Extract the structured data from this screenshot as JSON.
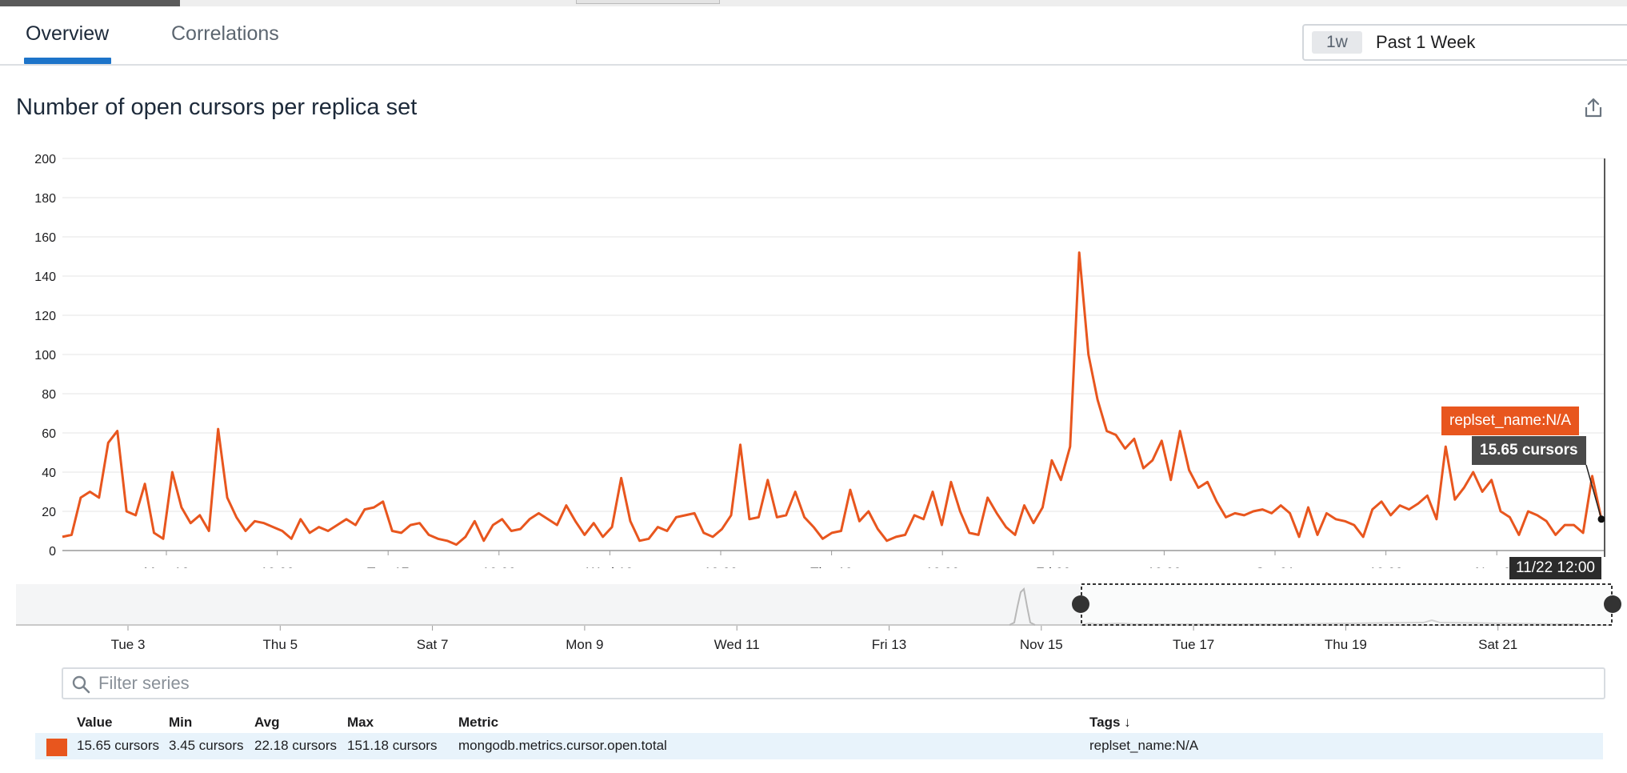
{
  "tabs": [
    {
      "label": "Overview",
      "active": true
    },
    {
      "label": "Correlations",
      "active": false
    }
  ],
  "time_picker": {
    "badge": "1w",
    "label": "Past 1 Week"
  },
  "chart": {
    "title": "Number of open cursors per replica set",
    "export_icon": "share-export-icon"
  },
  "chart_data": {
    "type": "line",
    "ylim": [
      0,
      200
    ],
    "yticks": [
      0,
      20,
      40,
      60,
      80,
      100,
      120,
      140,
      160,
      180,
      200
    ],
    "xticks": [
      "Mon 16",
      "12:00",
      "Tue 17",
      "12:00",
      "Wed 18",
      "12:00",
      "Thu 19",
      "12:00",
      "Fri 20",
      "12:00",
      "Sat 21",
      "12:00",
      "Nov 22"
    ],
    "series": [
      {
        "name": "replset_name:N/A",
        "color": "#e8561e",
        "x_start": "Nov 15, 10:00",
        "x_step_hours": 1,
        "values": [
          7,
          8,
          27,
          30,
          27,
          55,
          61,
          20,
          18,
          34,
          9,
          6,
          40,
          22,
          14,
          18,
          10,
          62,
          27,
          17,
          10,
          15,
          14,
          12,
          10,
          6,
          16,
          9,
          12,
          10,
          13,
          16,
          13,
          21,
          22,
          25,
          10,
          9,
          13,
          14,
          8,
          6,
          5,
          3,
          7,
          15,
          5,
          13,
          16,
          10,
          11,
          16,
          19,
          16,
          13,
          23,
          15,
          8,
          14,
          7,
          12,
          37,
          15,
          5,
          6,
          12,
          10,
          17,
          18,
          19,
          9,
          7,
          11,
          18,
          54,
          16,
          17,
          36,
          17,
          18,
          30,
          17,
          12,
          6,
          9,
          10,
          31,
          15,
          20,
          11,
          5,
          7,
          8,
          18,
          16,
          30,
          13,
          35,
          20,
          9,
          8,
          27,
          19,
          12,
          8,
          23,
          14,
          22,
          46,
          36,
          53,
          152,
          100,
          77,
          61,
          59,
          52,
          57,
          42,
          46,
          56,
          36,
          61,
          41,
          32,
          35,
          25,
          17,
          19,
          18,
          20,
          21,
          19,
          23,
          19,
          7,
          22,
          8,
          19,
          16,
          15,
          13,
          7,
          21,
          25,
          18,
          23,
          21,
          24,
          28,
          16,
          53,
          26,
          32,
          40,
          30,
          36,
          20,
          17,
          8,
          20,
          18,
          15,
          8,
          13,
          13,
          9,
          38,
          16
        ]
      }
    ]
  },
  "tooltip": {
    "tag": "replset_name:N/A",
    "value": "15.65 cursors",
    "time": "11/22 12:00"
  },
  "overview_chart": {
    "xticks": [
      "Tue 3",
      "Thu 5",
      "Sat 7",
      "Mon 9",
      "Wed 11",
      "Fri 13",
      "Nov 15",
      "Tue 17",
      "Thu 19",
      "Sat 21"
    ]
  },
  "filter": {
    "placeholder": "Filter series",
    "value": ""
  },
  "legend": {
    "headers": {
      "value": "Value",
      "min": "Min",
      "avg": "Avg",
      "max": "Max",
      "metric": "Metric",
      "tags": "Tags ↓"
    },
    "rows": [
      {
        "color": "#e8561e",
        "value": "15.65 cursors",
        "min": "3.45 cursors",
        "avg": "22.18 cursors",
        "max": "151.18 cursors",
        "metric": "mongodb.metrics.cursor.open.total",
        "tags": "replset_name:N/A"
      }
    ]
  }
}
